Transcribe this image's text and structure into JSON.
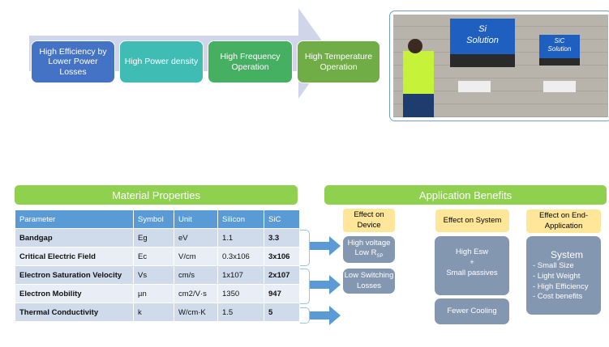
{
  "flow": {
    "items": [
      {
        "label": "High Efficiency  by Lower Power Losses",
        "color": "#4472c4"
      },
      {
        "label": "High Power density",
        "color": "#3fbcb4"
      },
      {
        "label": "High Frequency Operation",
        "color": "#45b062"
      },
      {
        "label": "High Temperature Operation",
        "color": "#70ad47"
      }
    ],
    "arrow_color": "#d0d5ea"
  },
  "photo": {
    "si_label_1": "Si",
    "si_label_2": "Solution",
    "sic_label_1": "SiC",
    "sic_label_2": "Solution"
  },
  "material": {
    "title": "Material Properties",
    "headers": [
      "Parameter",
      "Symbol",
      "Unit",
      "Silicon",
      "SiC"
    ],
    "rows": [
      [
        "Bandgap",
        "Eg",
        "eV",
        "1.1",
        "3.3"
      ],
      [
        "Critical Electric Field",
        "Ec",
        "V/cm",
        "0.3x106",
        "3x106"
      ],
      [
        "Electron Saturation Velocity",
        "Vs",
        "cm/s",
        "1x107",
        "2x107"
      ],
      [
        "Electron Mobility",
        "µn",
        "cm2/V·s",
        "1350",
        "947"
      ],
      [
        "Thermal Conductivity",
        "k",
        "W/cm·K",
        "1.5",
        "5"
      ]
    ]
  },
  "benefits": {
    "title": "Application Benefits",
    "device_header": "Effect on Device",
    "system_header": "Effect on System",
    "end_header": "Effect on End-Application",
    "device_1a": "High voltage",
    "device_1b": "Low R",
    "device_1sub": "SP",
    "device_2": "Low Switching Losses",
    "system_1a": "High Esw",
    "system_1b": "+",
    "system_1c": "Small passives",
    "system_2": "Fewer Cooling",
    "end_title": "System",
    "end_items": [
      "- Small Size",
      "- Light  Weight",
      "- High Efficiency",
      "- Cost benefits"
    ]
  },
  "colors": {
    "green_bar": "#8fd14f",
    "table_header": "#5b9bd5",
    "yellow": "#ffe699",
    "grey": "#8497b0",
    "arrow": "#5b9bd5"
  }
}
